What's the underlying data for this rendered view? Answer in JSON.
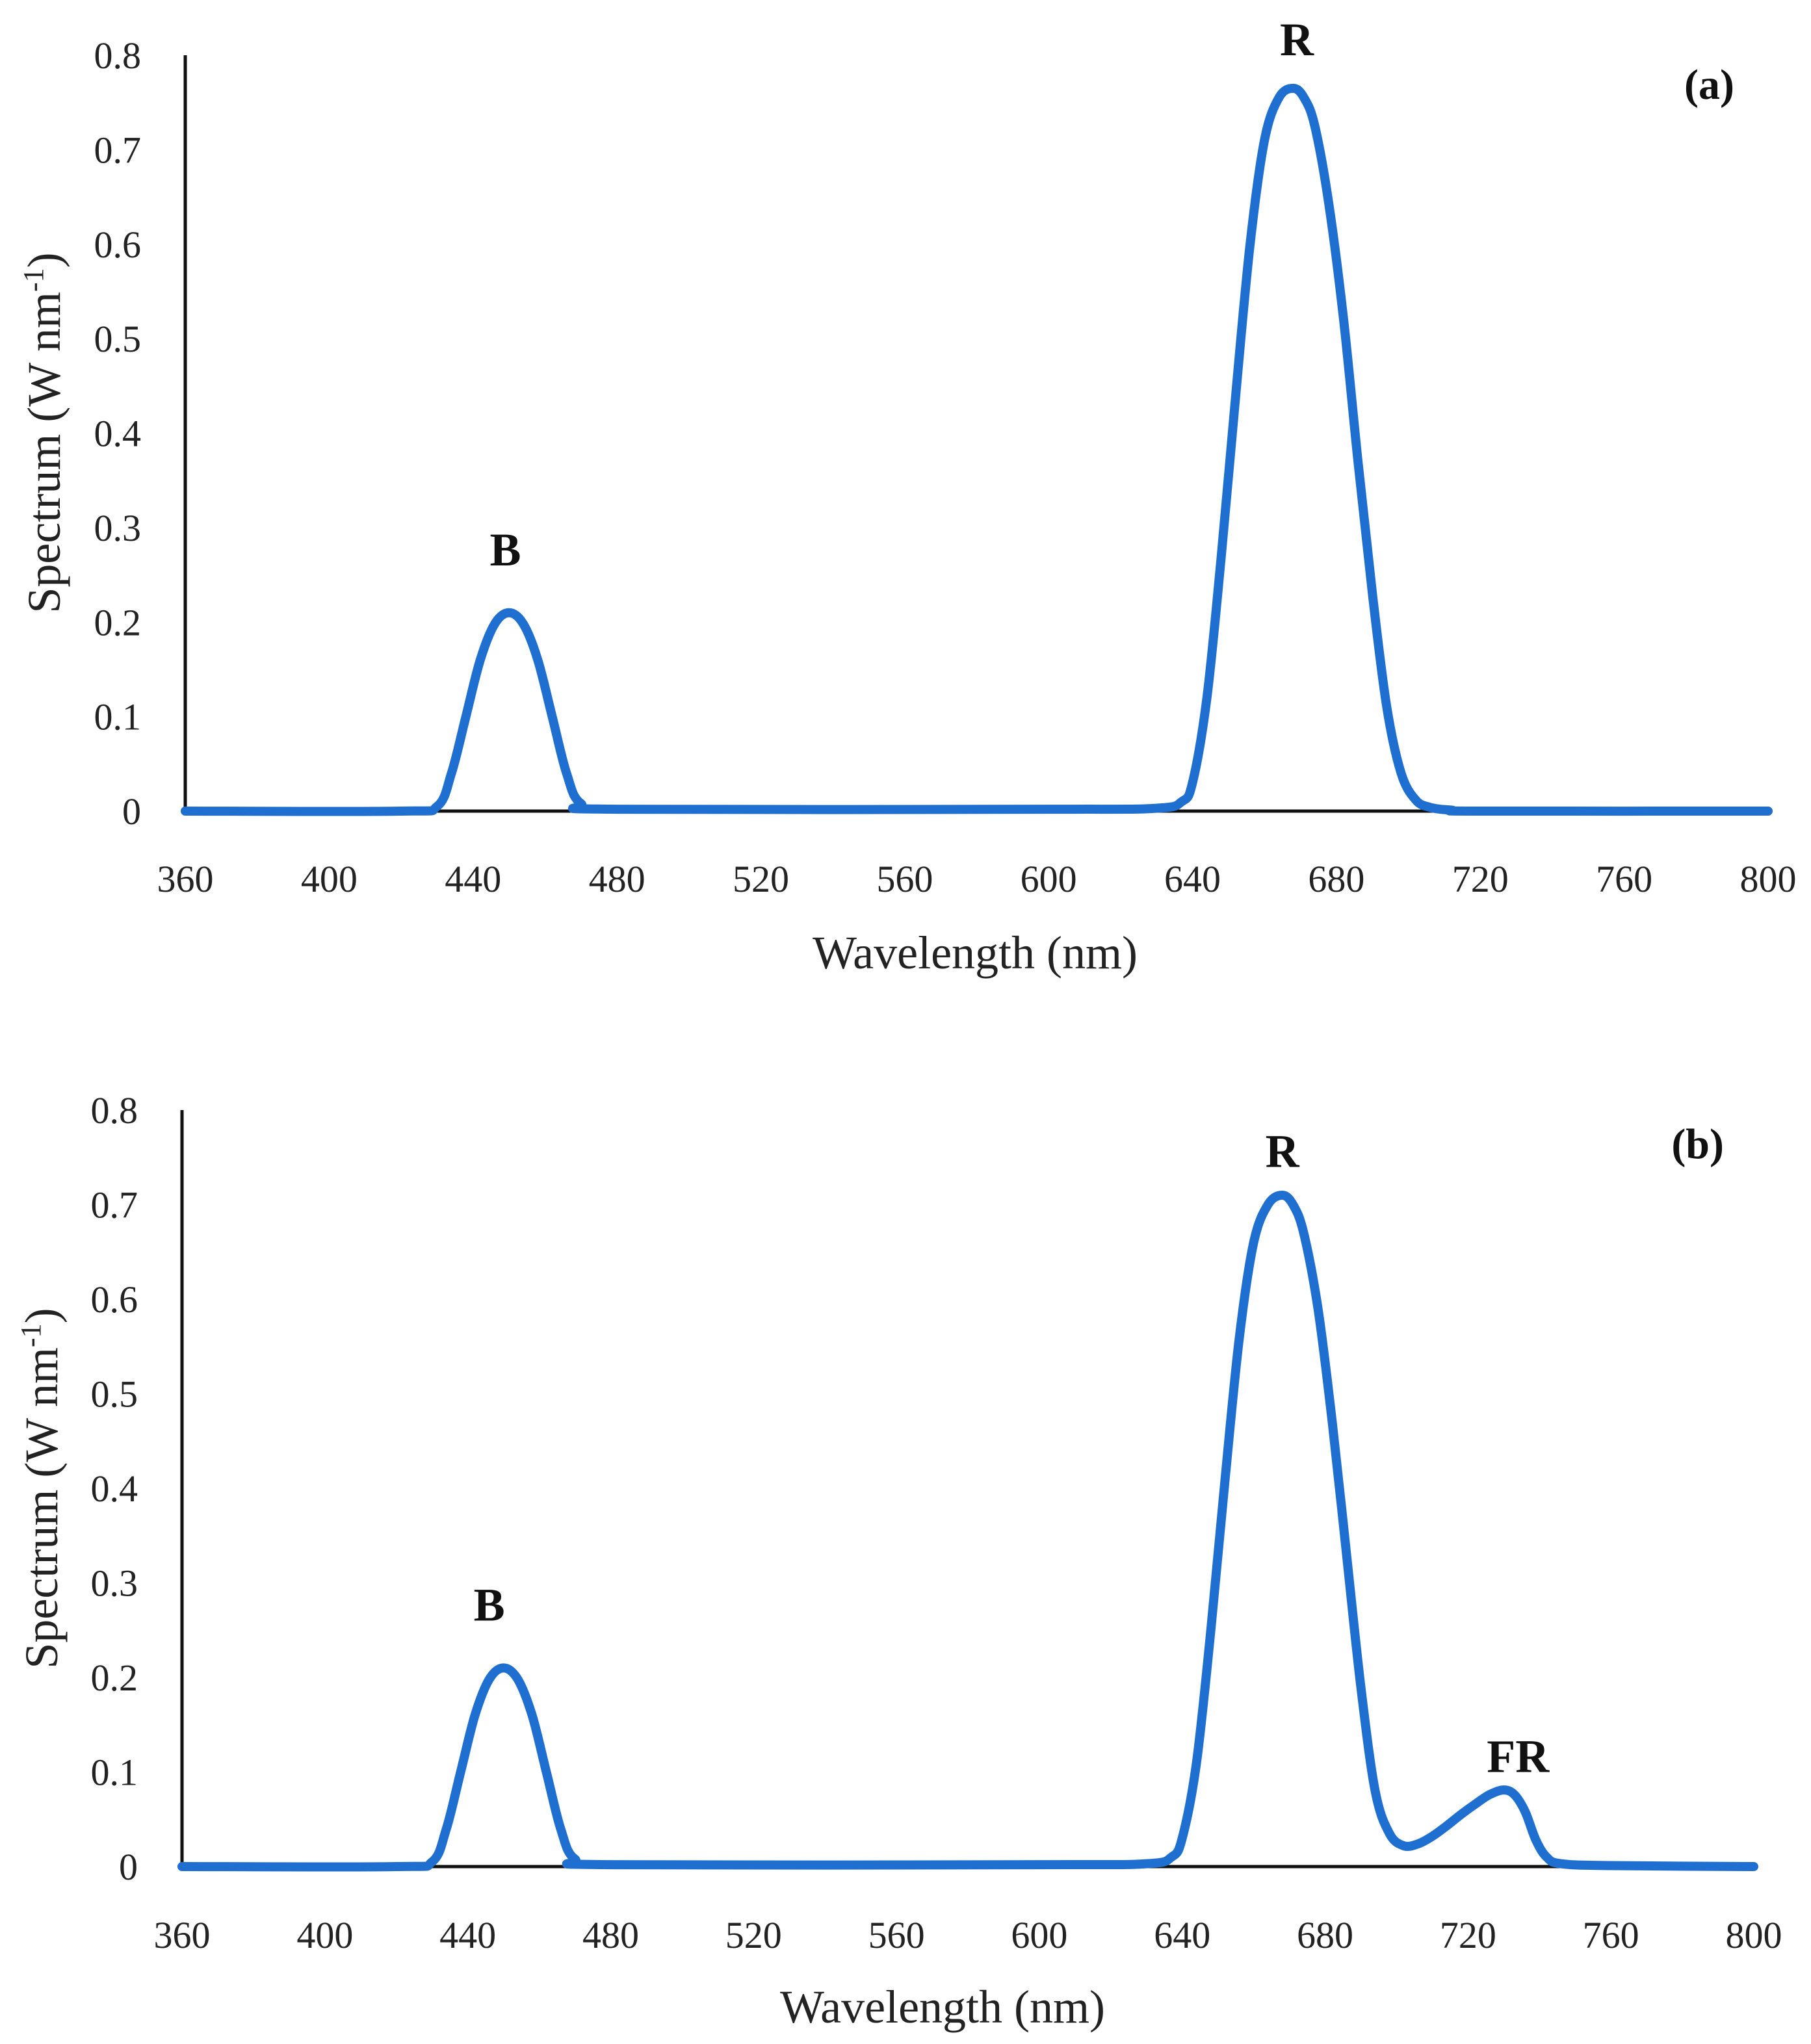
{
  "chart_data": [
    {
      "type": "line",
      "panel_label": "(a)",
      "xlabel": "Wavelength (nm)",
      "ylabel": "Spectrum (W nm",
      "ylabel_sup": "-1",
      "ylabel_close": ")",
      "xlim": [
        360,
        800
      ],
      "ylim": [
        0,
        0.8
      ],
      "x_ticks": [
        "360",
        "400",
        "440",
        "480",
        "520",
        "560",
        "600",
        "640",
        "680",
        "720",
        "760",
        "800"
      ],
      "y_ticks": [
        "0",
        "0.1",
        "0.2",
        "0.3",
        "0.4",
        "0.5",
        "0.6",
        "0.7",
        "0.8"
      ],
      "line_color": "#1f6fd1",
      "series": [
        {
          "name": "Spectrum",
          "x": [
            360,
            420,
            430,
            434,
            438,
            442,
            446,
            450,
            454,
            458,
            462,
            466,
            470,
            480,
            600,
            630,
            637,
            640,
            644,
            648,
            652,
            656,
            660,
            664,
            668,
            671,
            674,
            678,
            682,
            686,
            690,
            694,
            698,
            702,
            706,
            712,
            720,
            800
          ],
          "y": [
            0,
            0,
            0.005,
            0.04,
            0.1,
            0.16,
            0.198,
            0.21,
            0.198,
            0.16,
            0.1,
            0.04,
            0.008,
            0.002,
            0.002,
            0.003,
            0.01,
            0.03,
            0.12,
            0.27,
            0.44,
            0.6,
            0.71,
            0.755,
            0.765,
            0.755,
            0.725,
            0.64,
            0.52,
            0.37,
            0.23,
            0.11,
            0.04,
            0.012,
            0.004,
            0.001,
            0,
            0
          ]
        }
      ],
      "annotations": [
        {
          "text": "B",
          "x": 449,
          "y": 0.26
        },
        {
          "text": "R",
          "x": 669,
          "y": 0.8
        }
      ]
    },
    {
      "type": "line",
      "panel_label": "(b)",
      "xlabel": "Wavelength (nm)",
      "ylabel": "Spectrum (W nm",
      "ylabel_sup": "-1",
      "ylabel_close": ")",
      "xlim": [
        360,
        800
      ],
      "ylim": [
        0,
        0.8
      ],
      "x_ticks": [
        "360",
        "400",
        "440",
        "480",
        "520",
        "560",
        "600",
        "640",
        "680",
        "720",
        "760",
        "800"
      ],
      "y_ticks": [
        "0",
        "0.1",
        "0.2",
        "0.3",
        "0.4",
        "0.5",
        "0.6",
        "0.7",
        "0.8"
      ],
      "line_color": "#1f6fd1",
      "series": [
        {
          "name": "Spectrum",
          "x": [
            360,
            420,
            430,
            434,
            438,
            442,
            446,
            450,
            454,
            458,
            462,
            466,
            470,
            480,
            600,
            630,
            637,
            640,
            644,
            648,
            652,
            656,
            660,
            664,
            668,
            671,
            674,
            678,
            682,
            686,
            690,
            694,
            698,
            702,
            706,
            710,
            714,
            718,
            722,
            726,
            730,
            733,
            736,
            739,
            742,
            746,
            760,
            800
          ],
          "y": [
            0,
            0,
            0.005,
            0.04,
            0.1,
            0.16,
            0.198,
            0.21,
            0.198,
            0.16,
            0.1,
            0.04,
            0.008,
            0.002,
            0.002,
            0.003,
            0.01,
            0.03,
            0.11,
            0.25,
            0.41,
            0.56,
            0.66,
            0.7,
            0.71,
            0.7,
            0.67,
            0.59,
            0.47,
            0.33,
            0.19,
            0.08,
            0.035,
            0.022,
            0.024,
            0.032,
            0.043,
            0.055,
            0.066,
            0.076,
            0.081,
            0.076,
            0.058,
            0.028,
            0.01,
            0.003,
            0.001,
            0
          ]
        }
      ],
      "annotations": [
        {
          "text": "B",
          "x": 446,
          "y": 0.26
        },
        {
          "text": "R",
          "x": 668,
          "y": 0.74
        },
        {
          "text": "FR",
          "x": 734,
          "y": 0.1
        }
      ]
    }
  ]
}
